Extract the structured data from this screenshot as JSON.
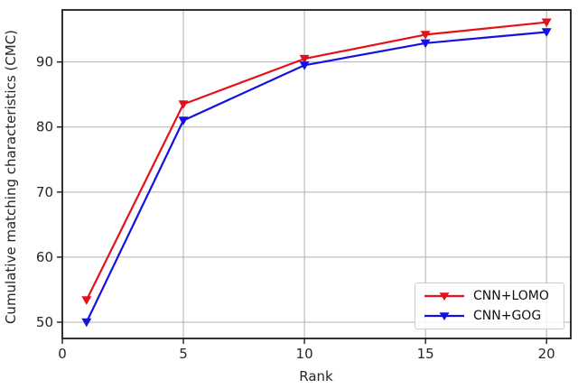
{
  "chart_data": {
    "type": "line",
    "title": "",
    "xlabel": "Rank",
    "ylabel": "Cumulative matching characteristics (CMC)",
    "x": [
      1,
      5,
      10,
      15,
      20
    ],
    "series": [
      {
        "name": "CNN+LOMO",
        "color": "#e31219",
        "marker": "triangle-down",
        "values": [
          53.4,
          83.5,
          90.5,
          94.2,
          96.1
        ]
      },
      {
        "name": "CNN+GOG",
        "color": "#1512e0",
        "marker": "triangle-down",
        "values": [
          50.0,
          81.0,
          89.5,
          92.9,
          94.6
        ]
      }
    ],
    "xlim": [
      0,
      21
    ],
    "ylim": [
      47.5,
      98
    ],
    "xticks": [
      0,
      5,
      10,
      15,
      20
    ],
    "yticks": [
      50,
      60,
      70,
      80,
      90
    ],
    "grid": true,
    "grid_color": "#b0b0b0",
    "spine_color": "#1c1c1c",
    "tick_label_color": "#262626",
    "legend_position": "lower right"
  }
}
